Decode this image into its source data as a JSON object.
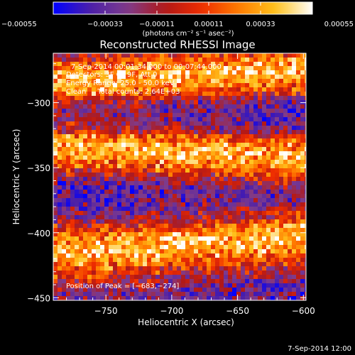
{
  "chart_data": {
    "type": "heatmap",
    "title": "Reconstructed RHESSI Image",
    "xlabel": "Heliocentric X (arcsec)",
    "ylabel": "Heliocentric Y (arcsec)",
    "xlim": [
      -790,
      -598
    ],
    "ylim": [
      -452,
      -262
    ],
    "x_ticks": [
      -750,
      -700,
      -650,
      -600
    ],
    "x_tick_labels": [
      "−750",
      "−700",
      "−650",
      "−600"
    ],
    "y_ticks": [
      -450,
      -400,
      -350,
      -300
    ],
    "y_tick_labels": [
      "−450",
      "−400",
      "−350",
      "−300"
    ],
    "colorbar": {
      "range": [
        -0.00055,
        0.00055
      ],
      "ticks": [
        -0.00055,
        -0.00033,
        -0.00011,
        0.00011,
        0.00033,
        0.00055
      ],
      "tick_labels": [
        "−0.00055",
        "−0.00033",
        "−0.00011",
        "0.00011",
        "0.00033",
        "0.00055"
      ],
      "units_label": "(photons cm⁻² s⁻¹ asec⁻²)",
      "colormap": [
        "#0000ff",
        "#4b1fa8",
        "#7f3c8c",
        "#b01818",
        "#ee2c00",
        "#ff7b00",
        "#ffc21c",
        "#ffffff"
      ]
    },
    "annotations": {
      "time": "7-Sep-2014 00:01:34.000 to 00:07:44.000",
      "detectors": "Detectors: 3F 6F 9F, Att 0",
      "energy": "Energy Range: 25.0 - 50.0 keV",
      "clean": "Clean     Total counts: 2.64E+03",
      "peak": "Position of Peak = [−683,−274]"
    },
    "bands": [
      {
        "name": "top",
        "y_center": -280,
        "x_start": -790,
        "x_end": -598
      },
      {
        "name": "middle",
        "y_center": -338,
        "x_start": -790,
        "x_end": -598
      },
      {
        "name": "bottom",
        "y_center": -410,
        "x_start": -790,
        "x_end": -598
      }
    ],
    "peak": [
      -683,
      -274
    ],
    "grid": false
  },
  "footer": {
    "timestamp": "7-Sep-2014 12:00"
  }
}
